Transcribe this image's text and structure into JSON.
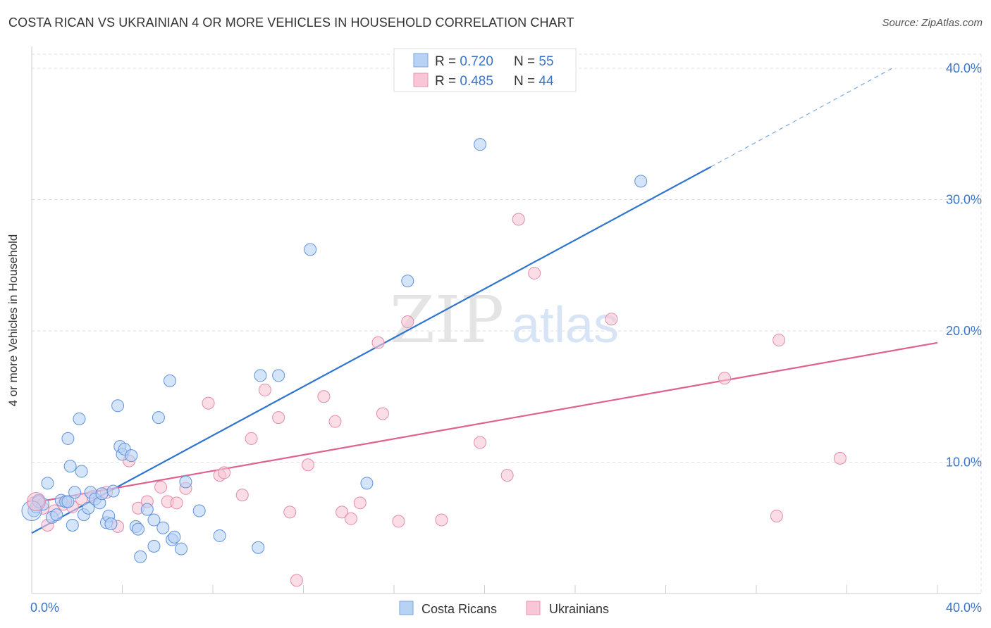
{
  "title": "COSTA RICAN VS UKRAINIAN 4 OR MORE VEHICLES IN HOUSEHOLD CORRELATION CHART",
  "source": "Source: ZipAtlas.com",
  "watermark": {
    "zip": "ZIP",
    "atlas": "atlas"
  },
  "colors": {
    "blue": "#3a7bd5",
    "blue_fill": "#b8d2f5",
    "blue_line": "#2f74d0",
    "pink": "#e0608e",
    "pink_fill": "#f8c6d6",
    "pink_line": "#e0608e",
    "axis_text": "#3a74c8",
    "grid": "#dddddd"
  },
  "legend": {
    "rows": [
      {
        "r_label": "R = ",
        "r_value": "0.720",
        "n_label": "N = ",
        "n_value": "55"
      },
      {
        "r_label": "R = ",
        "r_value": "0.485",
        "n_label": "N = ",
        "n_value": "44"
      }
    ]
  },
  "bottom_legend": {
    "items": [
      "Costa Ricans",
      "Ukrainians"
    ]
  },
  "chart_data": {
    "type": "scatter",
    "ylabel": "4 or more Vehicles in Household",
    "xlim": [
      0,
      0.4
    ],
    "ylim": [
      0,
      0.41
    ],
    "x_tick_labels": [
      "0.0%",
      "40.0%"
    ],
    "y_ticks": [
      0.1,
      0.2,
      0.3,
      0.4
    ],
    "y_tick_labels": [
      "10.0%",
      "20.0%",
      "30.0%",
      "40.0%"
    ],
    "grid": true,
    "series": [
      {
        "name": "Costa Ricans",
        "color": "#3a7bd5",
        "trend": {
          "x0": 0.0,
          "y0": 0.046,
          "x1": 0.3,
          "y1": 0.325,
          "dash_to_x": 0.38,
          "dash_to_y": 0.4
        },
        "points": [
          [
            0.001,
            0.063
          ],
          [
            0.002,
            0.066
          ],
          [
            0.003,
            0.071
          ],
          [
            0.005,
            0.068
          ],
          [
            0.007,
            0.084
          ],
          [
            0.009,
            0.058
          ],
          [
            0.011,
            0.06
          ],
          [
            0.013,
            0.071
          ],
          [
            0.015,
            0.07
          ],
          [
            0.016,
            0.07
          ],
          [
            0.016,
            0.118
          ],
          [
            0.017,
            0.097
          ],
          [
            0.018,
            0.052
          ],
          [
            0.019,
            0.077
          ],
          [
            0.021,
            0.133
          ],
          [
            0.022,
            0.093
          ],
          [
            0.023,
            0.06
          ],
          [
            0.025,
            0.065
          ],
          [
            0.026,
            0.077
          ],
          [
            0.028,
            0.072
          ],
          [
            0.03,
            0.069
          ],
          [
            0.031,
            0.076
          ],
          [
            0.033,
            0.054
          ],
          [
            0.034,
            0.059
          ],
          [
            0.035,
            0.053
          ],
          [
            0.036,
            0.078
          ],
          [
            0.038,
            0.143
          ],
          [
            0.039,
            0.112
          ],
          [
            0.04,
            0.106
          ],
          [
            0.041,
            0.11
          ],
          [
            0.044,
            0.105
          ],
          [
            0.046,
            0.051
          ],
          [
            0.047,
            0.049
          ],
          [
            0.048,
            0.028
          ],
          [
            0.051,
            0.064
          ],
          [
            0.054,
            0.036
          ],
          [
            0.054,
            0.056
          ],
          [
            0.056,
            0.134
          ],
          [
            0.058,
            0.05
          ],
          [
            0.061,
            0.162
          ],
          [
            0.062,
            0.041
          ],
          [
            0.063,
            0.043
          ],
          [
            0.066,
            0.034
          ],
          [
            0.068,
            0.085
          ],
          [
            0.074,
            0.063
          ],
          [
            0.083,
            0.044
          ],
          [
            0.1,
            0.035
          ],
          [
            0.101,
            0.166
          ],
          [
            0.109,
            0.166
          ],
          [
            0.123,
            0.262
          ],
          [
            0.148,
            0.084
          ],
          [
            0.166,
            0.238
          ],
          [
            0.198,
            0.342
          ],
          [
            0.269,
            0.314
          ],
          [
            0.003,
            0.07
          ]
        ]
      },
      {
        "name": "Ukrainians",
        "color": "#e0608e",
        "trend": {
          "x0": 0.0,
          "y0": 0.069,
          "x1": 0.4,
          "y1": 0.191
        },
        "points": [
          [
            0.001,
            0.069
          ],
          [
            0.005,
            0.065
          ],
          [
            0.007,
            0.052
          ],
          [
            0.01,
            0.063
          ],
          [
            0.014,
            0.068
          ],
          [
            0.018,
            0.066
          ],
          [
            0.022,
            0.072
          ],
          [
            0.027,
            0.074
          ],
          [
            0.033,
            0.077
          ],
          [
            0.038,
            0.051
          ],
          [
            0.043,
            0.101
          ],
          [
            0.047,
            0.065
          ],
          [
            0.051,
            0.07
          ],
          [
            0.057,
            0.081
          ],
          [
            0.06,
            0.07
          ],
          [
            0.064,
            0.069
          ],
          [
            0.068,
            0.08
          ],
          [
            0.078,
            0.145
          ],
          [
            0.083,
            0.09
          ],
          [
            0.085,
            0.092
          ],
          [
            0.093,
            0.075
          ],
          [
            0.097,
            0.118
          ],
          [
            0.103,
            0.155
          ],
          [
            0.109,
            0.134
          ],
          [
            0.114,
            0.062
          ],
          [
            0.117,
            0.01
          ],
          [
            0.122,
            0.098
          ],
          [
            0.129,
            0.15
          ],
          [
            0.134,
            0.131
          ],
          [
            0.137,
            0.062
          ],
          [
            0.141,
            0.057
          ],
          [
            0.145,
            0.069
          ],
          [
            0.153,
            0.191
          ],
          [
            0.155,
            0.137
          ],
          [
            0.162,
            0.055
          ],
          [
            0.166,
            0.207
          ],
          [
            0.181,
            0.056
          ],
          [
            0.198,
            0.115
          ],
          [
            0.21,
            0.09
          ],
          [
            0.215,
            0.285
          ],
          [
            0.222,
            0.244
          ],
          [
            0.256,
            0.209
          ],
          [
            0.306,
            0.164
          ],
          [
            0.329,
            0.059
          ]
        ]
      }
    ],
    "extra_points": {
      "Ukrainians": [
        [
          0.33,
          0.193
        ],
        [
          0.357,
          0.103
        ]
      ]
    }
  }
}
